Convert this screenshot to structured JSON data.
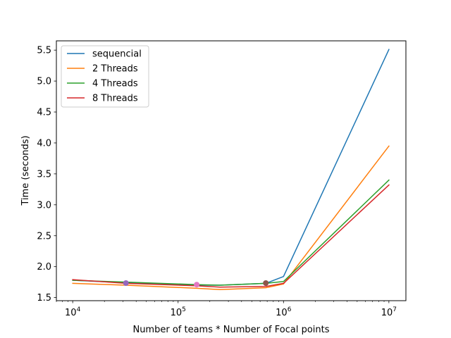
{
  "chart_data": {
    "type": "line",
    "xscale": "log",
    "xlabel": "Number of teams * Number of Focal points",
    "ylabel": "Time (seconds)",
    "xlim": [
      7000,
      14500000
    ],
    "ylim": [
      1.45,
      5.65
    ],
    "xticks": [
      {
        "value": 10000,
        "base": "10",
        "exp": "4"
      },
      {
        "value": 100000,
        "base": "10",
        "exp": "5"
      },
      {
        "value": 1000000,
        "base": "10",
        "exp": "6"
      },
      {
        "value": 10000000,
        "base": "10",
        "exp": "7"
      }
    ],
    "yticks": [
      {
        "value": 1.5,
        "label": "1.5"
      },
      {
        "value": 2.0,
        "label": "2.0"
      },
      {
        "value": 2.5,
        "label": "2.5"
      },
      {
        "value": 3.0,
        "label": "3.0"
      },
      {
        "value": 3.5,
        "label": "3.5"
      },
      {
        "value": 4.0,
        "label": "4.0"
      },
      {
        "value": 4.5,
        "label": "4.5"
      },
      {
        "value": 5.0,
        "label": "5.0"
      },
      {
        "value": 5.5,
        "label": "5.5"
      }
    ],
    "legend": "upper-left",
    "grid": false,
    "series": [
      {
        "name": "sequencial",
        "color": "#1f77b4",
        "x": [
          10000,
          32000,
          150000,
          250000,
          680000,
          1000000,
          10000000
        ],
        "y": [
          1.78,
          1.74,
          1.7,
          1.7,
          1.73,
          1.84,
          5.51
        ]
      },
      {
        "name": "2 Threads",
        "color": "#ff7f0e",
        "x": [
          10000,
          32000,
          150000,
          250000,
          680000,
          1000000,
          10000000
        ],
        "y": [
          1.73,
          1.7,
          1.65,
          1.63,
          1.66,
          1.72,
          3.95
        ]
      },
      {
        "name": "4 Threads",
        "color": "#2ca02c",
        "x": [
          10000,
          32000,
          150000,
          250000,
          680000,
          1000000,
          10000000
        ],
        "y": [
          1.78,
          1.75,
          1.71,
          1.7,
          1.73,
          1.76,
          3.4
        ]
      },
      {
        "name": "8 Threads",
        "color": "#d62728",
        "x": [
          10000,
          32000,
          150000,
          250000,
          680000,
          1000000,
          10000000
        ],
        "y": [
          1.79,
          1.73,
          1.69,
          1.67,
          1.68,
          1.73,
          3.32
        ]
      }
    ],
    "markers": [
      {
        "x": 32000,
        "y": 1.735,
        "color": "#9467bd"
      },
      {
        "x": 150000,
        "y": 1.71,
        "color": "#e377c2"
      },
      {
        "x": 680000,
        "y": 1.735,
        "color": "#8c564b"
      }
    ]
  }
}
